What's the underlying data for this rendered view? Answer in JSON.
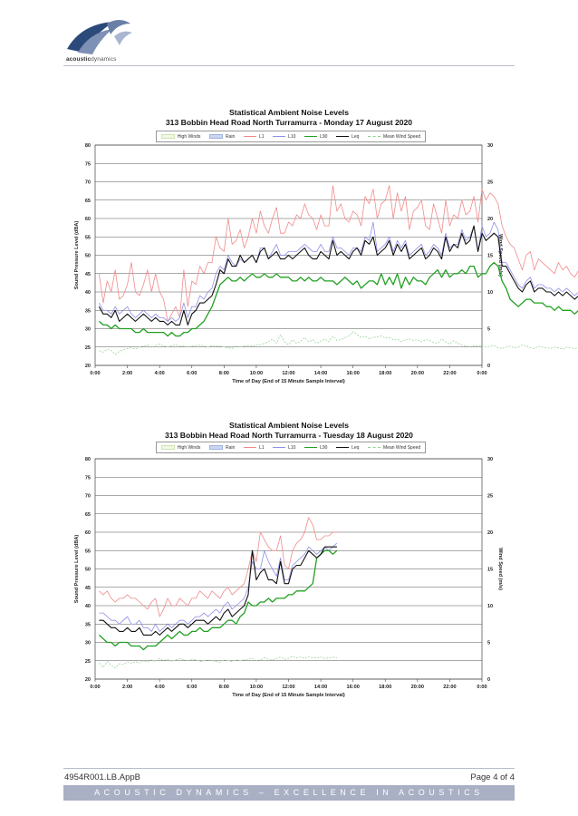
{
  "header": {
    "logo_text_a": "acoustic",
    "logo_text_b": "dynamics"
  },
  "footer": {
    "doc_ref": "4954R001.LB.AppB",
    "page_label": "Page 4 of 4",
    "tagline": "ACOUSTIC DYNAMICS – EXCELLENCE IN ACOUSTICS"
  },
  "legend_labels": [
    "High Winds",
    "Rain",
    "L1",
    "L10",
    "L90",
    "Leq",
    "Mean Wind Speed"
  ],
  "colors": {
    "L1": "#f08a8a",
    "L10": "#8f8fe8",
    "L90": "#22a022",
    "Leq": "#111111",
    "wind": "#8fcf8f",
    "grid": "#555555",
    "high_winds": "#f1f8e4",
    "rain": "#c9d7f0"
  },
  "chart_data": [
    {
      "type": "line",
      "title": "Statistical Ambient Noise Levels",
      "subtitle": "313 Bobbin Head Road North Turramurra - Monday 17 August 2020",
      "xlabel": "Time of Day (End of 15 Minute  Sample Interval)",
      "ylabel": "Sound Pressure Level (dBA)",
      "y2label": "Wind Speed (m/s)",
      "x_ticks": [
        "0:00",
        "2:00",
        "4:00",
        "6:00",
        "8:00",
        "10:00",
        "12:00",
        "14:00",
        "16:00",
        "18:00",
        "20:00",
        "22:00",
        "0:00"
      ],
      "x_range_hours": [
        0,
        24
      ],
      "sample_interval_hours": 0.25,
      "ylim": [
        20,
        80
      ],
      "y_ticks": [
        20,
        25,
        30,
        35,
        40,
        45,
        50,
        55,
        60,
        65,
        70,
        75,
        80
      ],
      "y2lim": [
        0,
        30
      ],
      "y2_ticks": [
        0,
        5,
        10,
        15,
        20,
        25,
        30
      ],
      "grid": true,
      "legend_position": "top",
      "series": [
        {
          "name": "L1",
          "values": [
            45,
            37,
            43,
            40,
            46,
            38,
            39,
            42,
            48,
            40,
            39,
            42,
            46,
            40,
            45,
            40,
            38,
            32,
            34,
            36,
            33,
            46,
            36,
            43,
            42,
            47,
            45,
            48,
            48,
            55,
            52,
            51,
            60,
            53,
            54,
            57,
            52,
            55,
            60,
            56,
            62,
            58,
            56,
            60,
            63,
            56,
            56,
            59,
            58,
            61,
            60,
            64,
            61,
            60,
            57,
            61,
            58,
            58,
            69,
            62,
            64,
            60,
            59,
            62,
            61,
            58,
            66,
            64,
            68,
            60,
            64,
            65,
            69,
            60,
            67,
            62,
            66,
            57,
            62,
            63,
            65,
            58,
            57,
            64,
            60,
            56,
            65,
            58,
            61,
            60,
            65,
            61,
            62,
            66,
            59,
            68,
            65,
            67,
            66,
            64,
            58,
            55,
            53,
            52,
            49,
            46,
            50,
            51,
            46,
            49,
            48,
            47,
            46,
            45,
            48,
            46,
            47,
            45,
            44,
            46,
            45,
            44,
            43,
            46,
            44,
            41,
            43,
            42
          ]
        },
        {
          "name": "L10",
          "values": [
            37,
            35,
            35,
            34,
            36,
            34,
            35,
            36,
            34,
            33,
            34,
            35,
            34,
            33,
            34,
            33,
            33,
            32,
            33,
            32,
            33,
            37,
            33,
            36,
            36,
            39,
            38,
            40,
            41,
            45,
            47,
            46,
            50,
            48,
            47,
            49,
            48,
            49,
            50,
            48,
            52,
            52,
            49,
            51,
            53,
            50,
            50,
            51,
            51,
            51,
            52,
            53,
            52,
            51,
            51,
            53,
            51,
            51,
            55,
            52,
            52,
            51,
            50,
            52,
            52,
            51,
            55,
            54,
            59,
            51,
            52,
            53,
            55,
            51,
            54,
            52,
            54,
            50,
            51,
            52,
            53,
            50,
            51,
            53,
            52,
            50,
            56,
            52,
            53,
            53,
            57,
            54,
            55,
            58,
            51,
            58,
            55,
            56,
            59,
            57,
            48,
            48,
            46,
            44,
            42,
            41,
            43,
            44,
            41,
            42,
            42,
            41,
            41,
            40,
            41,
            40,
            41,
            40,
            39,
            40,
            40,
            39,
            38,
            40,
            39,
            37,
            38,
            37
          ]
        },
        {
          "name": "L90",
          "values": [
            32,
            31,
            31,
            30,
            31,
            30,
            30,
            30,
            30,
            29,
            29,
            30,
            29,
            29,
            29,
            29,
            29,
            28,
            29,
            28,
            28,
            29,
            29,
            30,
            30,
            31,
            32,
            34,
            36,
            39,
            42,
            43,
            44,
            43,
            43,
            44,
            43,
            44,
            45,
            44,
            44,
            45,
            44,
            44,
            45,
            44,
            44,
            44,
            43,
            43,
            44,
            43,
            44,
            43,
            43,
            44,
            43,
            43,
            43,
            42,
            43,
            44,
            43,
            42,
            43,
            41,
            42,
            43,
            43,
            42,
            45,
            42,
            44,
            42,
            45,
            41,
            44,
            42,
            44,
            43,
            43,
            42,
            44,
            45,
            46,
            44,
            46,
            44,
            45,
            45,
            46,
            45,
            47,
            47,
            44,
            45,
            45,
            47,
            48,
            47,
            43,
            41,
            38,
            37,
            36,
            37,
            38,
            38,
            37,
            37,
            37,
            36,
            36,
            35,
            36,
            35,
            35,
            35,
            34,
            35,
            35,
            34,
            34,
            34,
            33,
            32,
            33,
            32
          ]
        },
        {
          "name": "Leq",
          "values": [
            36,
            34,
            34,
            33,
            35,
            32,
            33,
            34,
            33,
            32,
            33,
            34,
            33,
            32,
            33,
            32,
            32,
            31,
            32,
            31,
            31,
            35,
            31,
            34,
            35,
            37,
            37,
            38,
            39,
            42,
            46,
            45,
            49,
            47,
            47,
            50,
            48,
            49,
            50,
            48,
            51,
            52,
            49,
            50,
            51,
            49,
            49,
            50,
            49,
            50,
            51,
            52,
            50,
            49,
            49,
            51,
            50,
            49,
            54,
            50,
            51,
            50,
            49,
            51,
            52,
            50,
            54,
            53,
            55,
            50,
            51,
            52,
            54,
            50,
            53,
            51,
            53,
            49,
            50,
            51,
            52,
            49,
            50,
            52,
            51,
            49,
            55,
            51,
            53,
            52,
            56,
            53,
            54,
            58,
            51,
            56,
            54,
            55,
            56,
            55,
            47,
            47,
            45,
            43,
            41,
            40,
            42,
            43,
            40,
            41,
            41,
            40,
            40,
            39,
            40,
            39,
            40,
            39,
            38,
            39,
            39,
            38,
            37,
            38,
            38,
            36,
            37,
            36
          ]
        },
        {
          "name": "Mean Wind Speed",
          "axis": "right",
          "values": [
            2.0,
            1.8,
            2.2,
            2.0,
            1.5,
            1.9,
            2.1,
            2.3,
            2.4,
            2.2,
            2.5,
            2.6,
            2.8,
            2.4,
            2.7,
            2.9,
            2.6,
            2.5,
            2.7,
            2.8,
            2.6,
            2.6,
            2.5,
            2.6,
            2.7,
            2.8,
            2.6,
            2.5,
            2.7,
            2.6,
            2.6,
            2.5,
            2.4,
            2.3,
            2.6,
            2.5,
            2.6,
            2.7,
            2.6,
            2.8,
            2.8,
            3.0,
            3.2,
            3.6,
            3.0,
            4.2,
            3.2,
            2.8,
            3.5,
            3.0,
            3.3,
            3.8,
            3.2,
            3.5,
            3.0,
            3.3,
            3.6,
            3.2,
            4.0,
            3.4,
            3.5,
            3.8,
            4.0,
            4.6,
            4.2,
            3.8,
            4.0,
            3.6,
            3.8,
            3.9,
            4.0,
            3.7,
            3.8,
            3.5,
            3.6,
            3.2,
            3.5,
            3.6,
            3.4,
            3.5,
            3.2,
            3.5,
            3.4,
            3.1,
            3.0,
            3.6,
            3.2,
            2.9,
            3.4,
            3.0,
            2.8,
            2.6,
            2.5,
            2.7,
            2.6,
            2.8,
            2.5,
            2.6,
            2.7,
            2.4,
            2.3,
            2.5,
            2.6,
            2.4,
            2.5,
            2.8,
            2.6,
            2.4,
            2.3,
            2.6,
            2.5,
            2.4,
            2.3,
            2.5,
            2.4,
            2.2,
            2.5,
            2.4,
            2.3,
            2.4,
            2.3,
            2.2,
            2.5,
            2.1,
            2.2,
            2.6,
            2.0,
            2.4
          ]
        }
      ]
    },
    {
      "type": "line",
      "title": "Statistical Ambient Noise Levels",
      "subtitle": "313 Bobbin Head Road North Turramurra - Tuesday 18 August 2020",
      "xlabel": "Time of Day (End of 15 Minute  Sample Interval)",
      "ylabel": "Sound Pressure Level (dBA)",
      "y2label": "Wind Speed (m/s)",
      "x_ticks": [
        "0:00",
        "2:00",
        "4:00",
        "6:00",
        "8:00",
        "10:00",
        "12:00",
        "14:00",
        "16:00",
        "18:00",
        "20:00",
        "22:00",
        "0:00"
      ],
      "x_range_hours": [
        0,
        24
      ],
      "sample_interval_hours": 0.25,
      "ylim": [
        20,
        80
      ],
      "y_ticks": [
        20,
        25,
        30,
        35,
        40,
        45,
        50,
        55,
        60,
        65,
        70,
        75,
        80
      ],
      "y2lim": [
        0,
        30
      ],
      "y2_ticks": [
        0,
        5,
        10,
        15,
        20,
        25,
        30
      ],
      "grid": true,
      "legend_position": "top",
      "series": [
        {
          "name": "L1",
          "values": [
            44,
            43,
            44,
            42,
            41,
            42,
            42,
            43,
            42,
            42,
            41,
            40,
            39,
            41,
            42,
            37,
            39,
            42,
            40,
            40,
            42,
            41,
            40,
            42,
            42,
            44,
            43,
            42,
            44,
            43,
            42,
            44,
            45,
            43,
            44,
            45,
            46,
            50,
            55,
            52,
            60,
            58,
            56,
            55,
            55,
            59,
            51,
            50,
            55,
            57,
            58,
            60,
            64,
            62,
            58,
            58,
            59,
            59,
            60,
            60
          ]
        },
        {
          "name": "L10",
          "values": [
            38,
            38,
            37,
            36,
            36,
            35,
            36,
            37,
            35,
            35,
            36,
            34,
            34,
            33,
            35,
            33,
            34,
            35,
            34,
            35,
            36,
            36,
            35,
            36,
            37,
            37,
            38,
            37,
            38,
            39,
            38,
            40,
            41,
            39,
            40,
            41,
            42,
            45,
            52,
            50,
            50,
            55,
            52,
            50,
            48,
            53,
            47,
            47,
            51,
            52,
            53,
            54,
            56,
            55,
            54,
            55,
            56,
            55,
            56,
            57
          ]
        },
        {
          "name": "L90",
          "values": [
            32,
            31,
            30,
            30,
            29,
            30,
            30,
            30,
            29,
            29,
            29,
            28,
            29,
            29,
            29,
            30,
            31,
            32,
            31,
            32,
            33,
            32,
            32,
            33,
            33,
            34,
            33,
            33,
            34,
            34,
            34,
            35,
            36,
            36,
            35,
            37,
            38,
            41,
            40,
            40,
            41,
            41,
            42,
            41,
            42,
            42,
            42,
            43,
            43,
            44,
            44,
            44,
            45,
            46,
            53,
            54,
            55,
            55,
            54,
            55
          ]
        },
        {
          "name": "Leq",
          "values": [
            36,
            36,
            35,
            34,
            34,
            33,
            33,
            34,
            33,
            33,
            34,
            32,
            32,
            32,
            33,
            32,
            33,
            34,
            33,
            34,
            35,
            35,
            34,
            35,
            36,
            36,
            36,
            35,
            36,
            37,
            36,
            38,
            39,
            37,
            38,
            39,
            40,
            43,
            55,
            47,
            49,
            50,
            47,
            47,
            46,
            52,
            46,
            46,
            50,
            51,
            51,
            53,
            55,
            54,
            53,
            54,
            56,
            56,
            56,
            56
          ]
        },
        {
          "name": "Mean Wind Speed",
          "axis": "right",
          "values": [
            2.2,
            1.6,
            2.4,
            1.9,
            1.5,
            2.1,
            2.0,
            2.3,
            2.1,
            2.4,
            2.2,
            2.5,
            2.3,
            2.6,
            2.4,
            2.8,
            2.5,
            2.7,
            2.4,
            2.6,
            2.8,
            2.6,
            2.5,
            2.7,
            2.6,
            2.4,
            2.5,
            2.6,
            2.5,
            2.4,
            2.3,
            2.6,
            2.5,
            2.4,
            2.6,
            2.5,
            2.6,
            2.7,
            2.8,
            2.5,
            2.6,
            2.9,
            2.7,
            2.6,
            2.8,
            3.0,
            2.7,
            2.8,
            3.1,
            2.9,
            3.0,
            2.8,
            3.1,
            2.9,
            2.9,
            3.0,
            2.8,
            2.9,
            3.0,
            2.9
          ]
        }
      ]
    }
  ]
}
